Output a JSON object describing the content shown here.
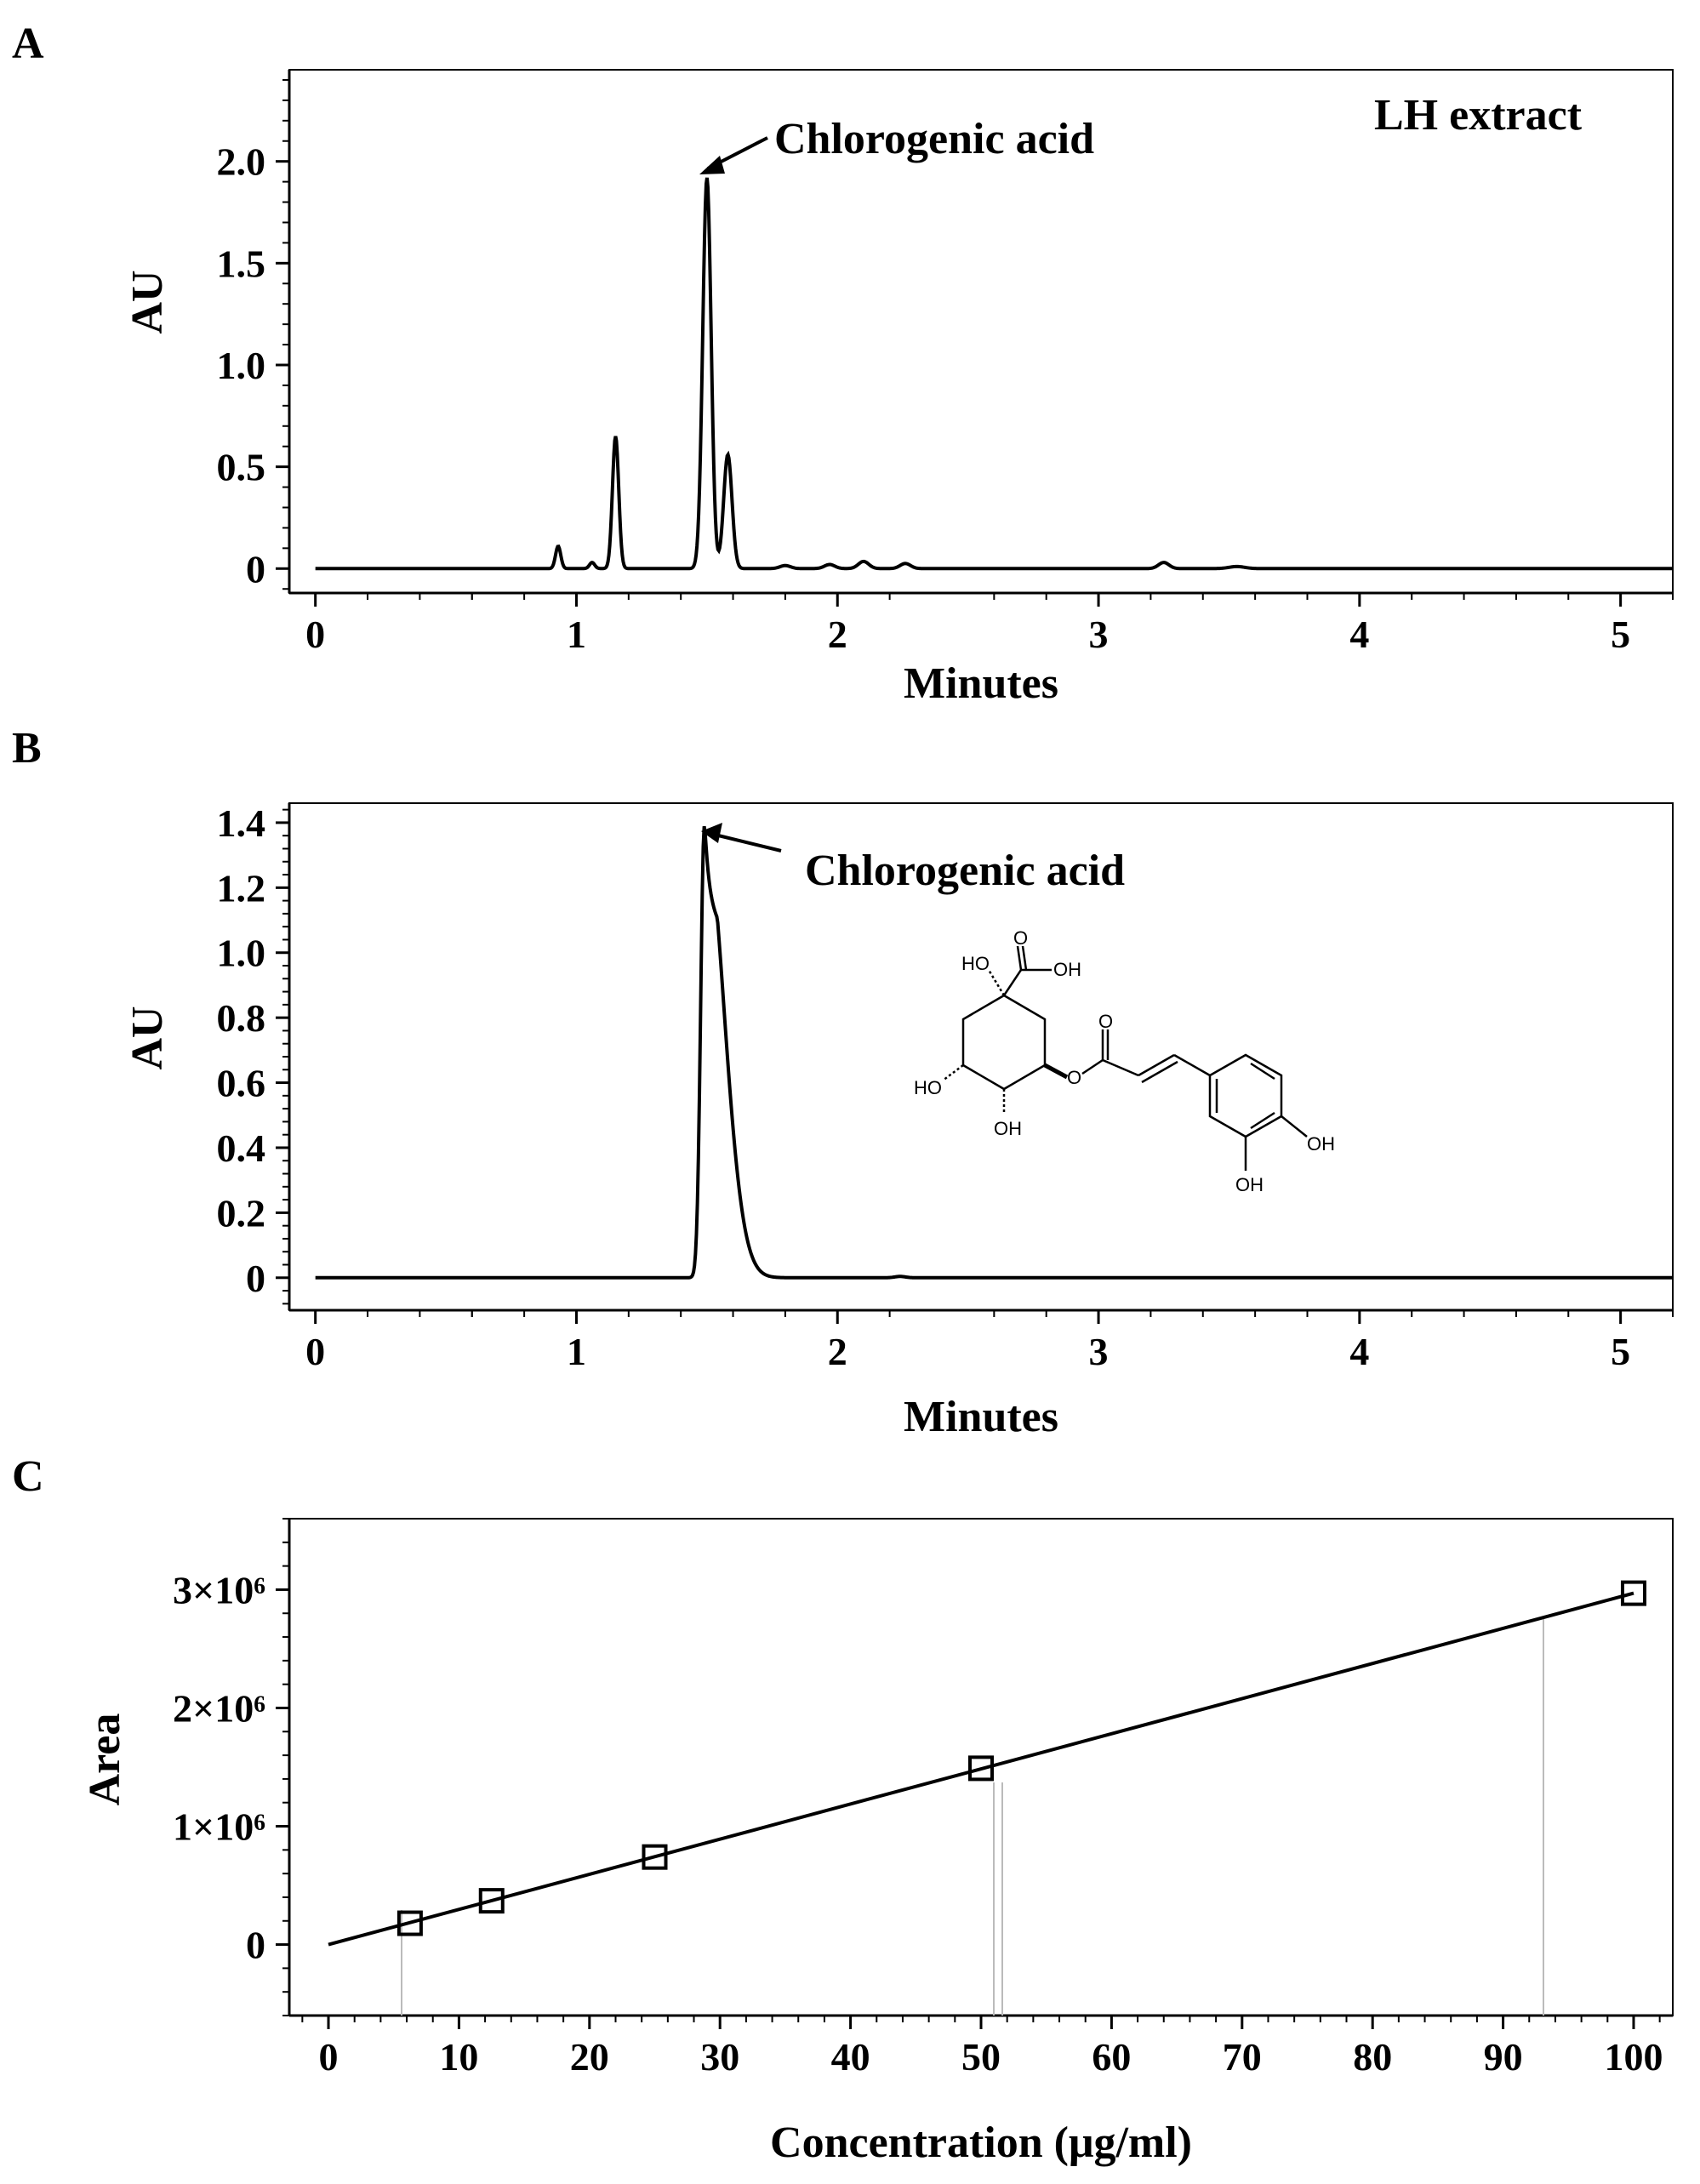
{
  "panels": {
    "a": {
      "letter": "A",
      "label_text": "LH extract"
    },
    "b": {
      "letter": "B"
    },
    "c": {
      "letter": "C"
    }
  },
  "structure": {
    "atom_labels": [
      "HO",
      "O",
      "OH",
      "O",
      "HO",
      "O",
      "OH",
      "OH",
      "OH"
    ]
  },
  "chart_data": [
    {
      "type": "line",
      "panel": "A",
      "xlabel": "Minutes",
      "ylabel": "AU",
      "xlim": [
        -0.1,
        5.2
      ],
      "ylim": [
        -0.12,
        2.45
      ],
      "x_ticks": [
        0,
        1,
        2,
        3,
        4,
        5
      ],
      "y_ticks": [
        0,
        0.5,
        1.0,
        1.5,
        2.0
      ],
      "y_tick_labels": [
        "0",
        "0.5",
        "1.0",
        "1.5",
        "2.0"
      ],
      "annotations": [
        {
          "text": "Chlorogenic acid",
          "x": 1.5,
          "y": 1.92
        }
      ],
      "grid": false,
      "peaks": [
        {
          "x": 0.93,
          "y": 0.11,
          "w": 0.01
        },
        {
          "x": 1.06,
          "y": 0.03,
          "w": 0.01
        },
        {
          "x": 1.15,
          "y": 0.65,
          "w": 0.012
        },
        {
          "x": 1.5,
          "y": 1.92,
          "w": 0.016
        },
        {
          "x": 1.58,
          "y": 0.56,
          "w": 0.016
        },
        {
          "x": 1.8,
          "y": 0.015,
          "w": 0.02
        },
        {
          "x": 1.97,
          "y": 0.02,
          "w": 0.02
        },
        {
          "x": 2.1,
          "y": 0.035,
          "w": 0.02
        },
        {
          "x": 2.26,
          "y": 0.025,
          "w": 0.02
        },
        {
          "x": 3.25,
          "y": 0.03,
          "w": 0.02
        },
        {
          "x": 3.53,
          "y": 0.01,
          "w": 0.03
        }
      ]
    },
    {
      "type": "line",
      "panel": "B",
      "xlabel": "Minutes",
      "ylabel": "AU",
      "xlim": [
        -0.1,
        5.2
      ],
      "ylim": [
        -0.1,
        1.46
      ],
      "x_ticks": [
        0,
        1,
        2,
        3,
        4,
        5
      ],
      "y_ticks": [
        0,
        0.2,
        0.4,
        0.6,
        0.8,
        1.0,
        1.2,
        1.4
      ],
      "y_tick_labels": [
        "0",
        "0.2",
        "0.4",
        "0.6",
        "0.8",
        "1.0",
        "1.2",
        "1.4"
      ],
      "annotations": [
        {
          "text": "Chlorogenic acid",
          "x": 1.49,
          "y": 1.39
        }
      ],
      "grid": false,
      "peaks": [
        {
          "x": 1.49,
          "y": 1.39,
          "w": 0.014,
          "tail": 0.06
        },
        {
          "x": 2.24,
          "y": 0.004,
          "w": 0.02
        }
      ]
    },
    {
      "type": "scatter",
      "panel": "C",
      "xlabel": "Concentration (μg/ml)",
      "ylabel": "Area",
      "xlim": [
        -3,
        103
      ],
      "ylim": [
        -600000,
        3600000
      ],
      "x_ticks": [
        0,
        10,
        20,
        30,
        40,
        50,
        60,
        70,
        80,
        90,
        100
      ],
      "y_ticks": [
        0,
        1000000,
        2000000,
        3000000
      ],
      "y_tick_labels": [
        "0",
        "1×10⁶",
        "2×10⁶",
        "3×10⁶"
      ],
      "grid": false,
      "points": [
        {
          "x": 6.25,
          "y": 180000
        },
        {
          "x": 12.5,
          "y": 370000
        },
        {
          "x": 25,
          "y": 740000
        },
        {
          "x": 50,
          "y": 1490000
        },
        {
          "x": 100,
          "y": 2970000
        }
      ],
      "fit_line": {
        "x": [
          0,
          100
        ],
        "y": [
          0,
          2970000
        ]
      }
    }
  ]
}
